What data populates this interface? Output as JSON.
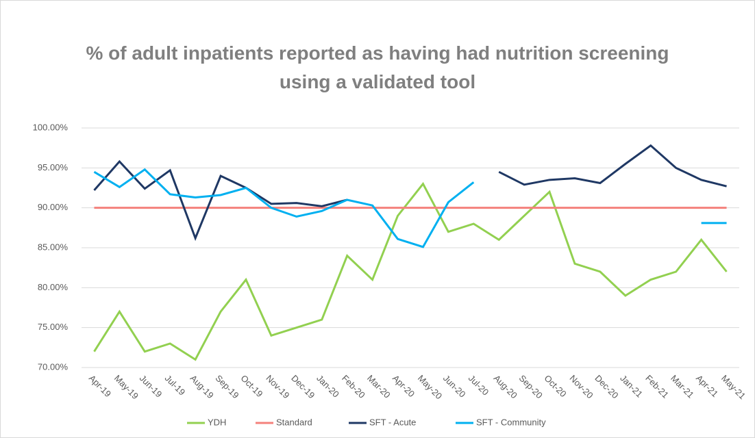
{
  "chart_data": {
    "type": "line",
    "title": "% of adult inpatients reported as having had nutrition screening using a validated tool",
    "categories": [
      "Apr-19",
      "May-19",
      "Jun-19",
      "Jul-19",
      "Aug-19",
      "Sep-19",
      "Oct-19",
      "Nov-19",
      "Dec-19",
      "Jan-20",
      "Feb-20",
      "Mar-20",
      "Apr-20",
      "May-20",
      "Jun-20",
      "Jul-20",
      "Aug-20",
      "Sep-20",
      "Oct-20",
      "Nov-20",
      "Dec-20",
      "Jan-21",
      "Feb-21",
      "Mar-21",
      "Apr-21",
      "May-21"
    ],
    "series": [
      {
        "name": "YDH",
        "color": "#92d050",
        "values": [
          72,
          77,
          72,
          73,
          71,
          77,
          81,
          74,
          75,
          76,
          84,
          81,
          89,
          93,
          87,
          88,
          86,
          89,
          92,
          83,
          82,
          79,
          81,
          82,
          86,
          82
        ]
      },
      {
        "name": "Standard",
        "color": "#f4817b",
        "values": [
          90,
          90,
          90,
          90,
          90,
          90,
          90,
          90,
          90,
          90,
          90,
          90,
          90,
          90,
          90,
          90,
          90,
          90,
          90,
          90,
          90,
          90,
          90,
          90,
          90,
          90
        ]
      },
      {
        "name": "SFT - Acute",
        "color": "#1f3864",
        "values": [
          92.2,
          95.8,
          92.4,
          94.7,
          86.2,
          94,
          92.5,
          90.5,
          90.6,
          90.2,
          91,
          null,
          null,
          null,
          null,
          null,
          94.5,
          92.9,
          93.5,
          93.7,
          93.1,
          95.5,
          97.8,
          95,
          93.5,
          92.7
        ]
      },
      {
        "name": "SFT - Community",
        "color": "#00b0f0",
        "values": [
          94.5,
          92.6,
          94.8,
          91.7,
          91.3,
          91.6,
          92.5,
          90,
          88.9,
          89.6,
          91,
          90.3,
          86.1,
          85.1,
          90.7,
          93.2,
          null,
          null,
          null,
          null,
          null,
          null,
          null,
          null,
          88.1,
          88.1
        ]
      }
    ],
    "ylim": [
      70,
      100
    ],
    "yticks": [
      {
        "value": 70,
        "label": "70.00%"
      },
      {
        "value": 75,
        "label": "75.00%"
      },
      {
        "value": 80,
        "label": "80.00%"
      },
      {
        "value": 85,
        "label": "85.00%"
      },
      {
        "value": 90,
        "label": "90.00%"
      },
      {
        "value": 95,
        "label": "95.00%"
      },
      {
        "value": 100,
        "label": "100.00%"
      }
    ],
    "grid": true,
    "legend": "bottom"
  }
}
